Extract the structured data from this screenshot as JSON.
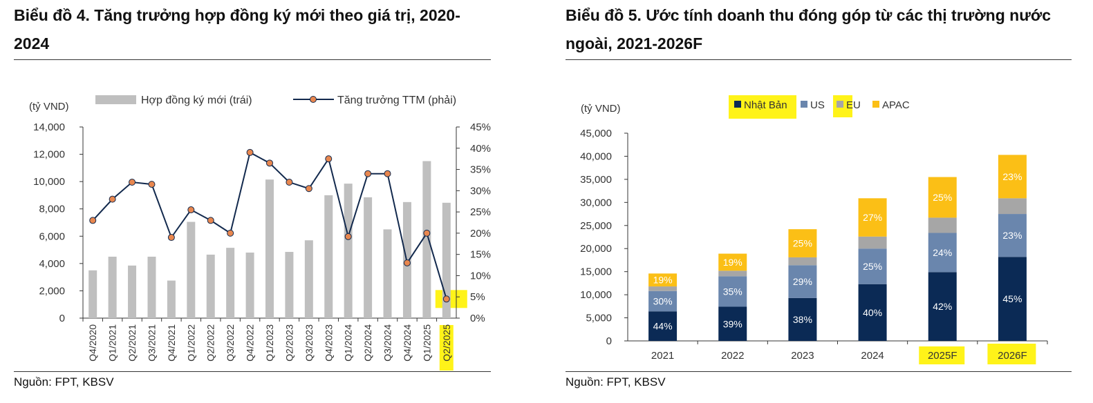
{
  "page_data": "chart",
  "colors": {
    "bar_gray": "#bfbfbf",
    "line_navy": "#12294d",
    "marker_orange": "#e8874f",
    "japan": "#0b2a55",
    "us": "#6a86ad",
    "eu": "#a6a6a6",
    "apac": "#fbbf16",
    "highlight": "#fff200"
  },
  "chart_data": [
    {
      "type": "bar",
      "title": "Biểu đồ 4. Tăng trưởng hợp đồng ký mới theo giá trị, 2020-2024",
      "unit_label": "(tỷ VND)",
      "categories": [
        "Q4/2020",
        "Q1/2021",
        "Q2/2021",
        "Q3/2021",
        "Q4/2021",
        "Q1/2022",
        "Q2/2022",
        "Q3/2022",
        "Q4/2022",
        "Q1/2023",
        "Q2/2023",
        "Q3/2023",
        "Q4/2023",
        "Q1/2024",
        "Q2/2024",
        "Q3/2024",
        "Q4/2024",
        "Q1/2025",
        "Q2/2025"
      ],
      "series": [
        {
          "name": "Hợp đồng ký mới (trái)",
          "type": "bar",
          "axis": "left",
          "values": [
            3500,
            4500,
            3850,
            4500,
            2750,
            7050,
            4650,
            5150,
            4800,
            10150,
            4850,
            5700,
            9000,
            9850,
            8850,
            6500,
            8500,
            11500,
            8450
          ]
        },
        {
          "name": "Tăng trưởng TTM (phải)",
          "type": "line",
          "axis": "right",
          "values": [
            23,
            28,
            32,
            31.5,
            19,
            25.5,
            23,
            20,
            39,
            36.5,
            32,
            30.5,
            37.5,
            19.2,
            34,
            34,
            13,
            20,
            4.5
          ]
        }
      ],
      "ylim": [
        0,
        14000
      ],
      "yticks": [
        "0",
        "2,000",
        "4,000",
        "6,000",
        "8,000",
        "10,000",
        "12,000",
        "14,000"
      ],
      "y2lim": [
        0,
        45
      ],
      "y2ticks": [
        "0%",
        "5%",
        "10%",
        "15%",
        "20%",
        "25%",
        "30%",
        "35%",
        "40%",
        "45%"
      ],
      "legend": "top",
      "source": "Nguồn:  FPT, KBSV"
    },
    {
      "type": "bar",
      "stacked": true,
      "title": "Biểu đồ 5. Ước tính doanh thu đóng góp từ các thị trường nước ngoài, 2021-2026F",
      "unit_label": "(tỷ VND)",
      "categories": [
        "2021",
        "2022",
        "2023",
        "2024",
        "2025F",
        "2026F"
      ],
      "series": [
        {
          "name": "Nhật Bản",
          "values": [
            6400,
            7400,
            9300,
            12300,
            14900,
            18200
          ],
          "labels": [
            "44%",
            "39%",
            "38%",
            "40%",
            "42%",
            "45%"
          ]
        },
        {
          "name": "US",
          "values": [
            4400,
            6600,
            7100,
            7700,
            8500,
            9300
          ],
          "labels": [
            "30%",
            "35%",
            "29%",
            "25%",
            "24%",
            "23%"
          ]
        },
        {
          "name": "EU",
          "values": [
            1000,
            1200,
            1700,
            2600,
            3300,
            3400
          ],
          "labels": [
            "",
            "",
            "",
            "",
            "",
            ""
          ]
        },
        {
          "name": "APAC",
          "values": [
            2800,
            3700,
            6100,
            8300,
            8800,
            9400
          ],
          "labels": [
            "19%",
            "19%",
            "25%",
            "27%",
            "25%",
            "23%"
          ]
        }
      ],
      "ylim": [
        0,
        45000
      ],
      "yticks": [
        "0",
        "5,000",
        "10,000",
        "15,000",
        "20,000",
        "25,000",
        "30,000",
        "35,000",
        "40,000",
        "45,000"
      ],
      "legend": "top",
      "source": "Nguồn: FPT, KBSV"
    }
  ]
}
